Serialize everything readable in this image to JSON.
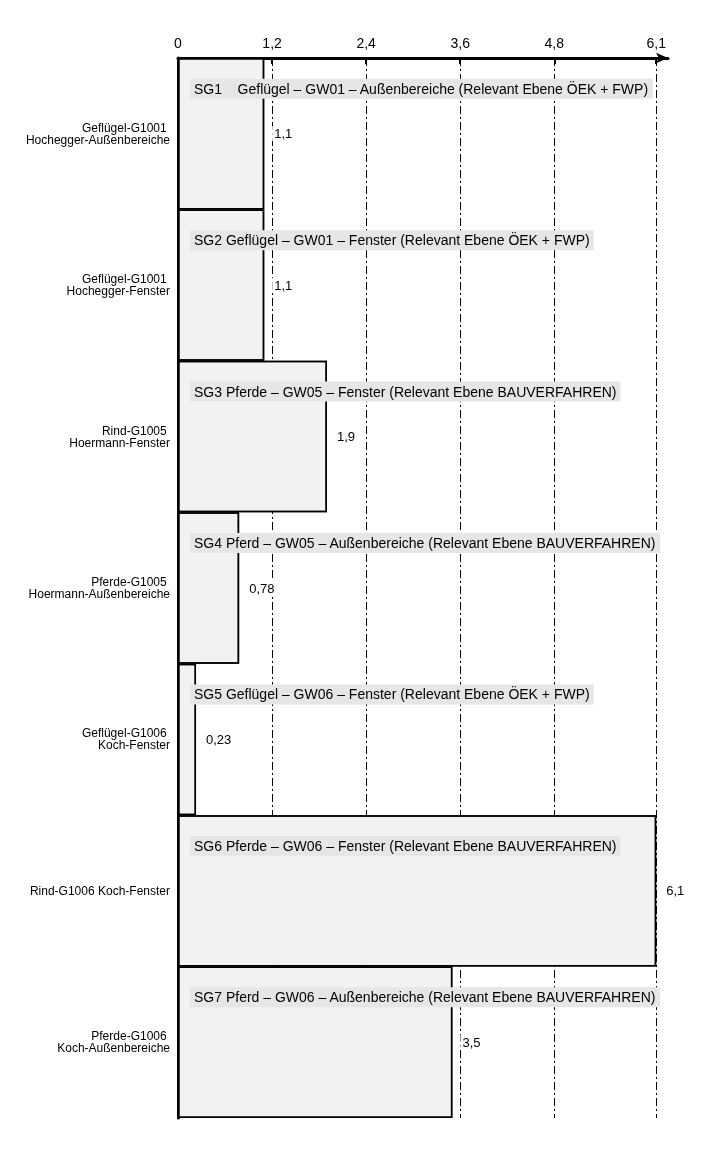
{
  "chart_data": {
    "type": "bar",
    "orientation": "horizontal",
    "categories": [
      "Geflügel-G1001 Hochegger-Außenbereiche",
      "Geflügel-G1001 Hochegger-Fenster",
      "Rind-G1005 Hoermann-Fenster",
      "Pferde-G1005 Hoermann-Außenbereiche",
      "Geflügel-G1006 Koch-Fenster",
      "Rind-G1006 Koch-Fenster",
      "Pferde-G1006 Koch-Außenbereiche"
    ],
    "values": [
      1.1,
      1.1,
      1.9,
      0.78,
      0.23,
      6.1,
      3.5
    ],
    "value_labels": [
      "1,1",
      "1,1",
      "1,9",
      "0,78",
      "0,23",
      "6,1",
      "3,5"
    ],
    "color": "#f2f2f2",
    "xlim": [
      0,
      6.25
    ],
    "xticks": [
      0,
      {
        "value": 1.2,
        "label": "1,2"
      },
      {
        "value": 2.4,
        "label": "2,4"
      },
      {
        "value": 3.6,
        "label": "3,6"
      },
      {
        "value": 4.8,
        "label": "4,8"
      },
      {
        "value": 6.1,
        "label": "6,1"
      }
    ],
    "grid": "x",
    "annotations": [
      "SG1    Geflügel – GW01 – Außenbereiche (Relevant Ebene ÖEK + FWP)",
      "SG2 Geflügel – GW01 – Fenster (Relevant Ebene ÖEK + FWP)",
      "SG3 Pferde – GW05 – Fenster (Relevant Ebene BAUVERFAHREN)",
      "SG4 Pferd – GW05 – Außenbereiche (Relevant Ebene BAUVERFAHREN)",
      "SG5 Geflügel – GW06 – Fenster (Relevant Ebene ÖEK + FWP)",
      "SG6 Pferde – GW06 – Fenster (Relevant Ebene BAUVERFAHREN)",
      "SG7 Pferd – GW06 – Außenbereiche (Relevant Ebene BAUVERFAHREN)"
    ]
  }
}
